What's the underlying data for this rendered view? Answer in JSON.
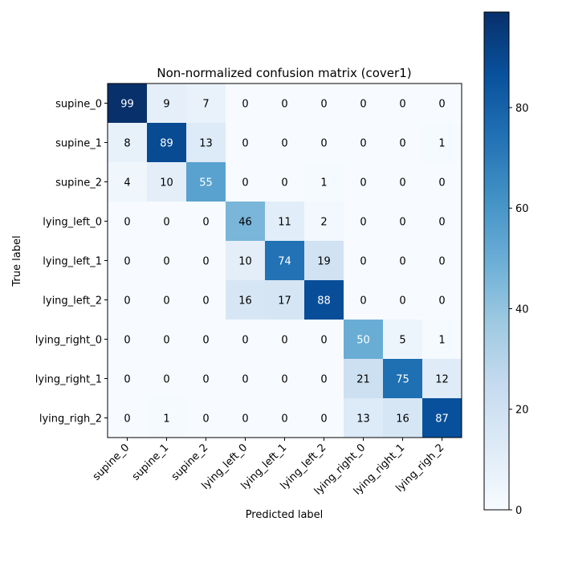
{
  "chart_data": {
    "type": "heatmap",
    "title": "Non-normalized confusion matrix (cover1)",
    "xlabel": "Predicted label",
    "ylabel": "True label",
    "x_categories": [
      "supine_0",
      "supine_1",
      "supine_2",
      "lying_left_0",
      "lying_left_1",
      "lying_left_2",
      "lying_right_0",
      "lying_right_1",
      "lying_righ_2"
    ],
    "y_categories": [
      "supine_0",
      "supine_1",
      "supine_2",
      "lying_left_0",
      "lying_left_1",
      "lying_left_2",
      "lying_right_0",
      "lying_right_1",
      "lying_righ_2"
    ],
    "values": [
      [
        99,
        9,
        7,
        0,
        0,
        0,
        0,
        0,
        0
      ],
      [
        8,
        89,
        13,
        0,
        0,
        0,
        0,
        0,
        1
      ],
      [
        4,
        10,
        55,
        0,
        0,
        1,
        0,
        0,
        0
      ],
      [
        0,
        0,
        0,
        46,
        11,
        2,
        0,
        0,
        0
      ],
      [
        0,
        0,
        0,
        10,
        74,
        19,
        0,
        0,
        0
      ],
      [
        0,
        0,
        0,
        16,
        17,
        88,
        0,
        0,
        0
      ],
      [
        0,
        0,
        0,
        0,
        0,
        0,
        50,
        5,
        1
      ],
      [
        0,
        0,
        0,
        0,
        0,
        0,
        21,
        75,
        12
      ],
      [
        0,
        1,
        0,
        0,
        0,
        0,
        13,
        16,
        87
      ]
    ],
    "colormap": "Blues",
    "color_range": [
      0,
      99
    ],
    "colorbar_ticks": [
      0,
      20,
      40,
      60,
      80
    ],
    "text_color_dark": "#000000",
    "text_color_light": "#ffffff"
  }
}
